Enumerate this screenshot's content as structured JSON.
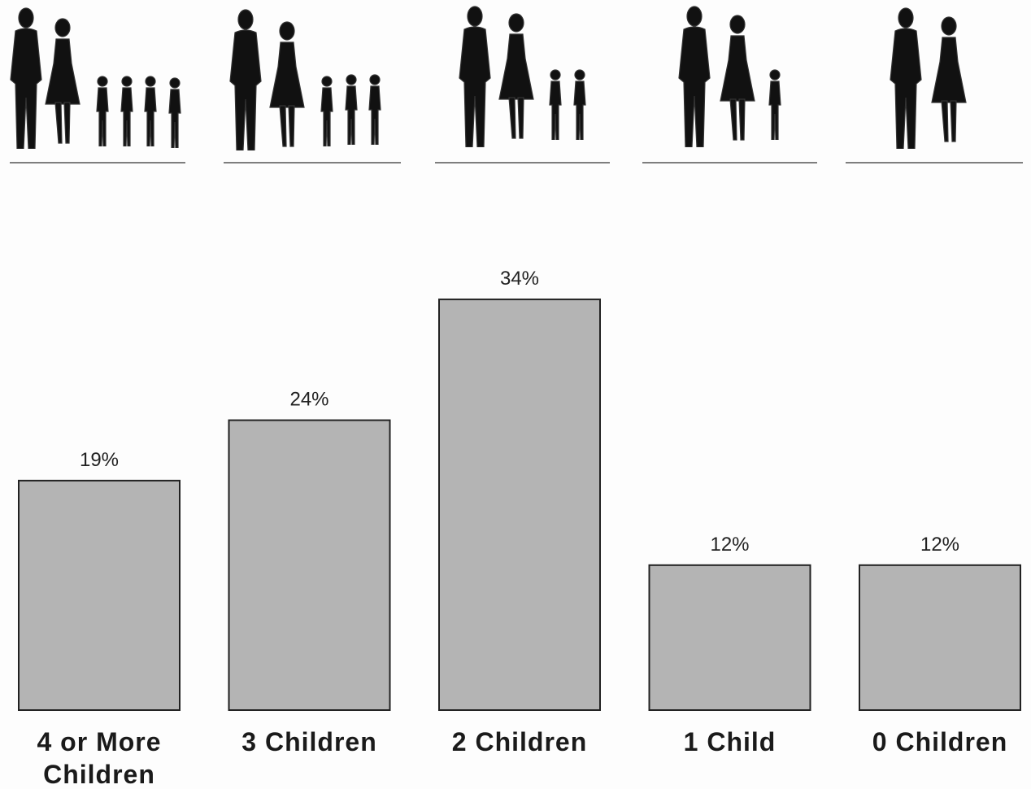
{
  "chart_data": {
    "type": "bar",
    "categories": [
      "4 or More Children",
      "3 Children",
      "2 Children",
      "1 Child",
      "0 Children"
    ],
    "values": [
      19,
      24,
      34,
      12,
      12
    ],
    "value_labels": [
      "19%",
      "24%",
      "34%",
      "12%",
      "12%"
    ],
    "color": "#b4b4b4"
  }
}
